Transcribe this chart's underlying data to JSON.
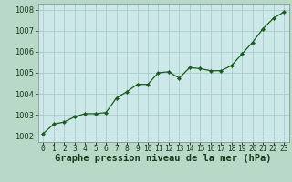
{
  "x": [
    0,
    1,
    2,
    3,
    4,
    5,
    6,
    7,
    8,
    9,
    10,
    11,
    12,
    13,
    14,
    15,
    16,
    17,
    18,
    19,
    20,
    21,
    22,
    23
  ],
  "y": [
    1002.1,
    1002.55,
    1002.65,
    1002.9,
    1003.05,
    1003.05,
    1003.1,
    1003.8,
    1004.1,
    1004.45,
    1004.45,
    1005.0,
    1005.05,
    1004.75,
    1005.25,
    1005.2,
    1005.1,
    1005.1,
    1005.35,
    1005.9,
    1006.45,
    1007.1,
    1007.6,
    1007.9
  ],
  "line_color": "#1a5c1a",
  "marker_color": "#1a5c1a",
  "bg_color": "#cce8e8",
  "grid_color": "#aacccc",
  "xlabel": "Graphe pression niveau de la mer (hPa)",
  "ylim_min": 1001.7,
  "ylim_max": 1008.3,
  "xlim_min": -0.5,
  "xlim_max": 23.5,
  "yticks": [
    1002,
    1003,
    1004,
    1005,
    1006,
    1007,
    1008
  ],
  "xtick_labels": [
    "0",
    "1",
    "2",
    "3",
    "4",
    "5",
    "6",
    "7",
    "8",
    "9",
    "10",
    "11",
    "12",
    "13",
    "14",
    "15",
    "16",
    "17",
    "18",
    "19",
    "20",
    "21",
    "22",
    "23"
  ],
  "xlabel_fontsize": 7.5,
  "tick_fontsize": 6.0,
  "outer_bg": "#b8d8c8"
}
